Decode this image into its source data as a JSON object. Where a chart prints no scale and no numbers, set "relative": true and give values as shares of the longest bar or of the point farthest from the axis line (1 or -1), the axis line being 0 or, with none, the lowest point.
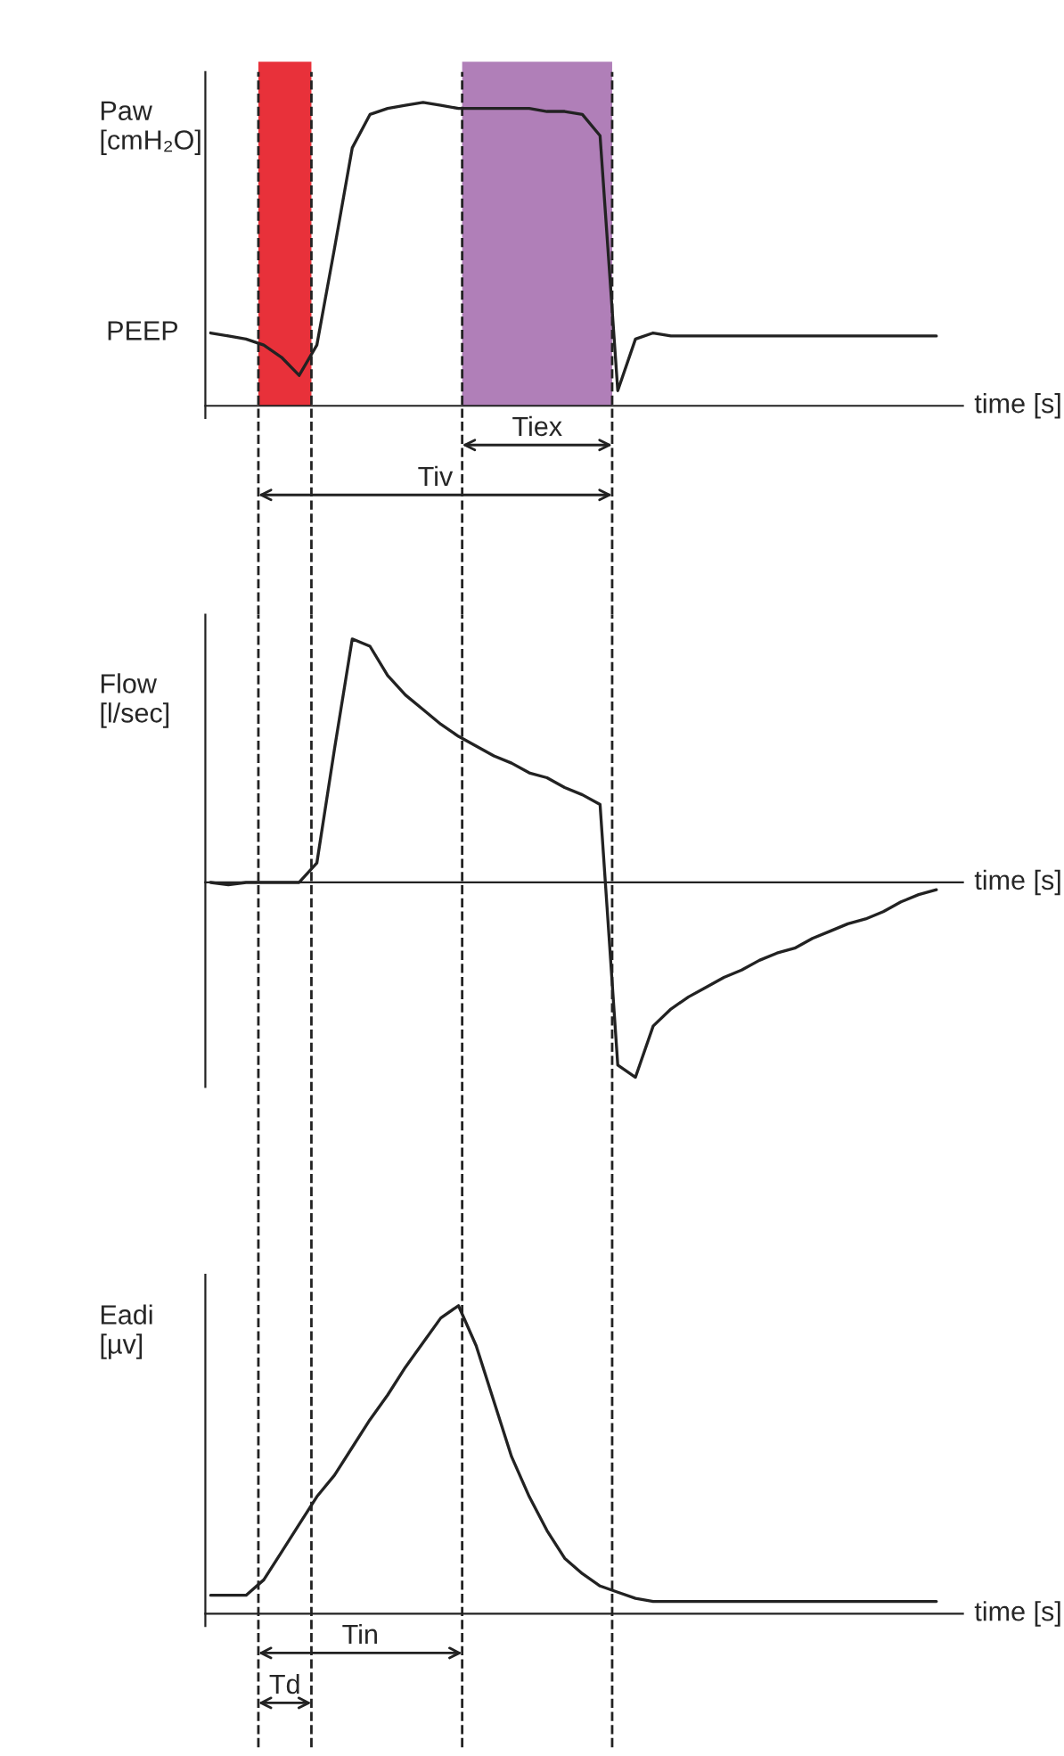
{
  "chart_data": [
    {
      "type": "line",
      "relative": true,
      "ylabel": "Paw\n[cmH₂O]",
      "xlabel": "time [s]",
      "line_style": "solid",
      "categories": [
        null,
        null,
        null,
        null,
        null,
        null,
        null,
        null,
        null,
        null,
        null,
        null,
        null,
        null,
        null,
        null,
        null,
        null,
        null,
        null,
        null,
        null,
        null,
        null,
        null,
        null,
        null,
        null,
        null,
        null,
        null,
        null,
        null,
        null,
        null,
        null,
        null,
        null,
        null,
        null,
        null,
        null
      ],
      "series": [
        {
          "color": "#222222",
          "values": [
            0.24,
            0.23,
            0.22,
            0.2,
            0.16,
            0.1,
            0.2,
            0.52,
            0.85,
            0.96,
            0.98,
            0.99,
            1,
            0.99,
            0.98,
            0.98,
            0.98,
            0.98,
            0.98,
            0.97,
            0.97,
            0.96,
            0.89,
            0.05,
            0.22,
            0.24,
            0.23,
            0.23,
            0.23,
            0.23,
            0.23,
            0.23,
            0.23,
            0.23,
            0.23,
            0.23,
            0.23,
            0.23,
            0.23,
            0.23,
            0.23,
            0.23
          ]
        }
      ],
      "annotations": [
        "PEEP",
        "Tiex",
        "Tiv"
      ]
    },
    {
      "type": "line",
      "relative": true,
      "ylabel": "Flow\n[l/sec]",
      "xlabel": "time [s]",
      "line_style": "solid",
      "categories": [
        null,
        null,
        null,
        null,
        null,
        null,
        null,
        null,
        null,
        null,
        null,
        null,
        null,
        null,
        null,
        null,
        null,
        null,
        null,
        null,
        null,
        null,
        null,
        null,
        null,
        null,
        null,
        null,
        null,
        null,
        null,
        null,
        null,
        null,
        null,
        null,
        null,
        null,
        null,
        null,
        null,
        null
      ],
      "series": [
        {
          "color": "#222222",
          "values": [
            0,
            -0.01,
            0,
            0,
            0,
            0,
            0.08,
            0.55,
            1,
            0.97,
            0.85,
            0.77,
            0.71,
            0.65,
            0.6,
            0.56,
            0.52,
            0.49,
            0.45,
            0.43,
            0.39,
            0.36,
            0.32,
            -0.75,
            -0.8,
            -0.59,
            -0.52,
            -0.47,
            -0.43,
            -0.39,
            -0.36,
            -0.32,
            -0.29,
            -0.27,
            -0.23,
            -0.2,
            -0.17,
            -0.15,
            -0.12,
            -0.08,
            -0.05,
            -0.03
          ]
        }
      ]
    },
    {
      "type": "line",
      "relative": true,
      "ylabel": "Eadi\n[µv]",
      "xlabel": "time [s]",
      "line_style": "solid",
      "categories": [
        null,
        null,
        null,
        null,
        null,
        null,
        null,
        null,
        null,
        null,
        null,
        null,
        null,
        null,
        null,
        null,
        null,
        null,
        null,
        null,
        null,
        null,
        null,
        null,
        null,
        null,
        null,
        null,
        null,
        null,
        null,
        null,
        null,
        null,
        null,
        null,
        null,
        null,
        null,
        null,
        null,
        null
      ],
      "series": [
        {
          "color": "#222222",
          "values": [
            0.06,
            0.06,
            0.06,
            0.11,
            0.2,
            0.29,
            0.38,
            0.45,
            0.54,
            0.63,
            0.71,
            0.8,
            0.88,
            0.96,
            1,
            0.87,
            0.69,
            0.51,
            0.38,
            0.27,
            0.18,
            0.13,
            0.09,
            0.07,
            0.05,
            0.04,
            0.04,
            0.04,
            0.04,
            0.04,
            0.04,
            0.04,
            0.04,
            0.04,
            0.04,
            0.04,
            0.04,
            0.04,
            0.04,
            0.04,
            0.04,
            0.04
          ]
        }
      ],
      "annotations": [
        "Tin",
        "Td"
      ]
    }
  ]
}
